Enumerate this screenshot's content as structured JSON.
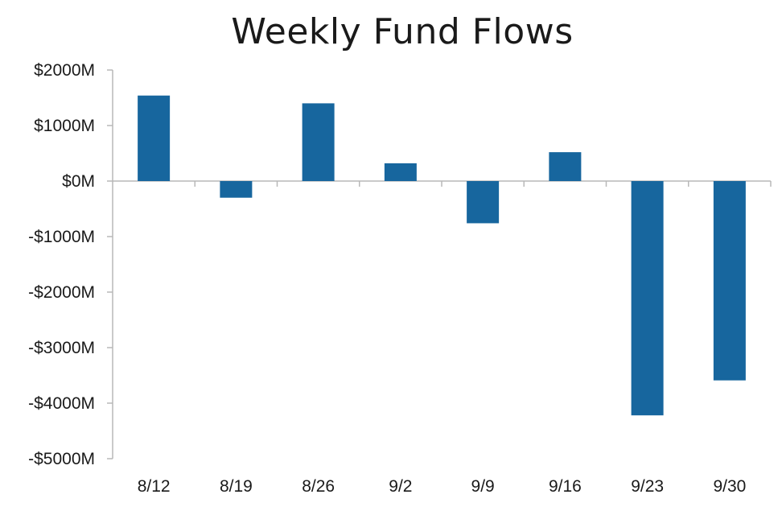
{
  "chart_data": {
    "type": "bar",
    "title": "Weekly Fund Flows",
    "xlabel": "",
    "ylabel": "",
    "categories": [
      "8/12",
      "8/19",
      "8/26",
      "9/2",
      "9/9",
      "9/16",
      "9/23",
      "9/30"
    ],
    "values": [
      1540,
      -300,
      1400,
      320,
      -760,
      520,
      -4220,
      -3590
    ],
    "ylim": [
      -5000,
      2000
    ],
    "yticks": [
      2000,
      1000,
      0,
      -1000,
      -2000,
      -3000,
      -4000,
      -5000
    ],
    "ytick_labels": [
      "$2000M",
      "$1000M",
      "$0M",
      "-$1000M",
      "-$2000M",
      "-$3000M",
      "-$4000M",
      "-$5000M"
    ],
    "grid": false,
    "legend": "none",
    "colors": {
      "bar": "#17669e",
      "axis": "#b8b8b8",
      "text": "#1a1a1a"
    }
  }
}
